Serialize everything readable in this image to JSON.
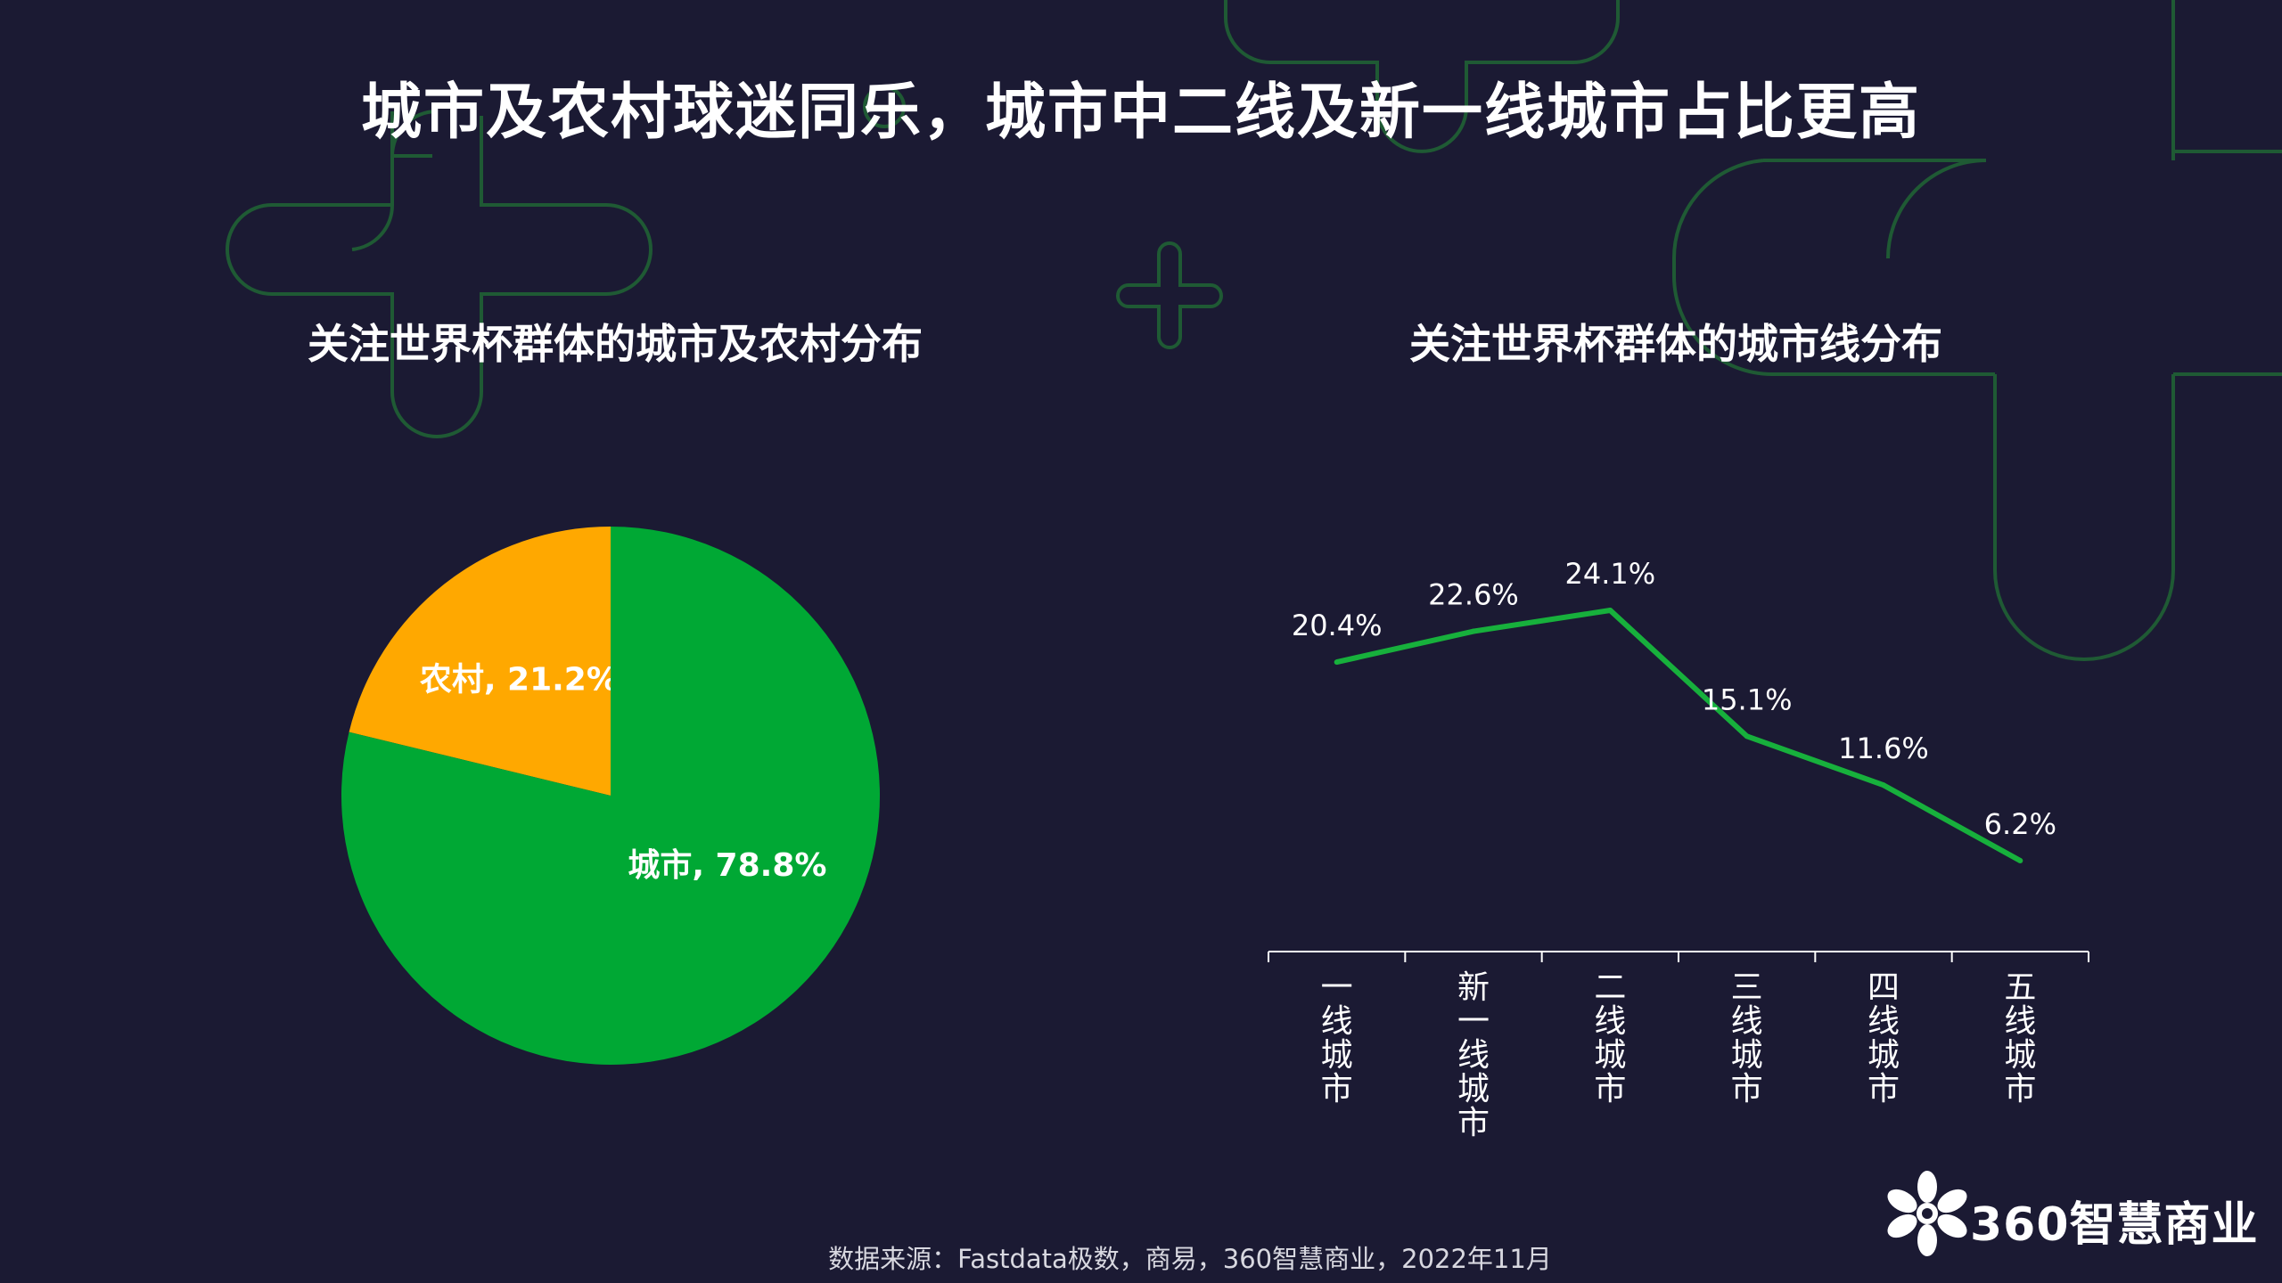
{
  "title": "城市及农村球迷同乐，城市中二线及新一线城市占比更高",
  "source": "数据来源：Fastdata极数，商易，360智慧商业，2022年11月",
  "logo": {
    "text": "360智慧商业",
    "icon": "flower-logo-icon"
  },
  "colors": {
    "background": "#1b1a33",
    "city": "#00a834",
    "rural": "#ffa800",
    "line": "#17b03c",
    "decoration": "#1f5a34"
  },
  "chart_data": [
    {
      "type": "pie",
      "title": "关注世界杯群体的城市及农村分布",
      "slices": [
        {
          "name": "农村",
          "value": 21.2,
          "label": "农村, 21.2%",
          "color": "#ffa800"
        },
        {
          "name": "城市",
          "value": 78.8,
          "label": "城市, 78.8%",
          "color": "#00a834"
        }
      ]
    },
    {
      "type": "line",
      "title": "关注世界杯群体的城市线分布",
      "categories": [
        "一线城市",
        "新一线城市",
        "二线城市",
        "三线城市",
        "四线城市",
        "五线城市"
      ],
      "values": [
        20.4,
        22.6,
        24.1,
        15.1,
        11.6,
        6.2
      ],
      "labels": [
        "20.4%",
        "22.6%",
        "24.1%",
        "15.1%",
        "11.6%",
        "6.2%"
      ],
      "unit": "%",
      "grid": false,
      "y_axis_visible": false
    }
  ]
}
